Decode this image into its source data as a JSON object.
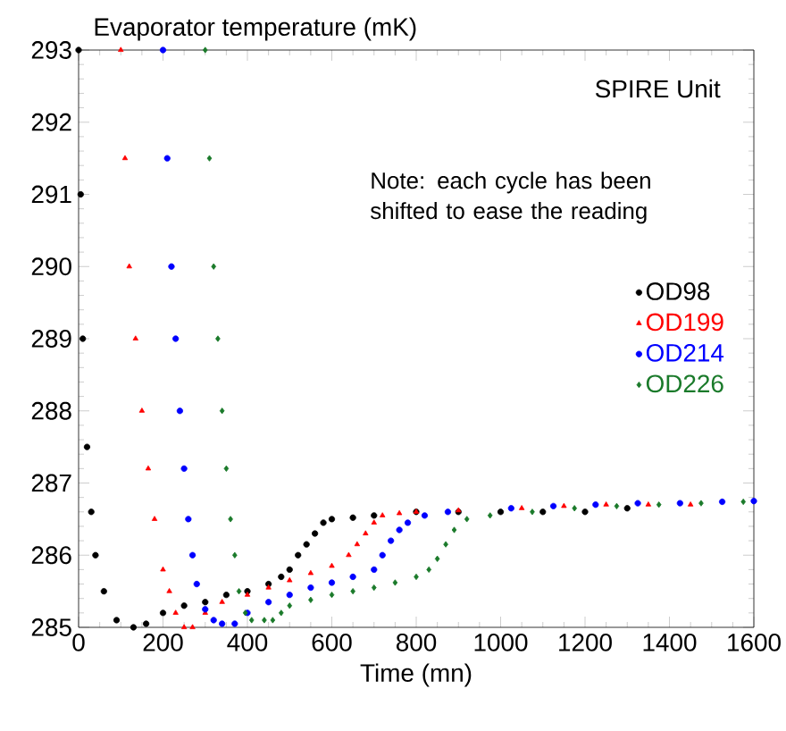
{
  "chart_data": {
    "type": "scatter",
    "ylabel": "Evaporator temperature (mK)",
    "xlabel": "Time (mn)",
    "xlim": [
      0,
      1600
    ],
    "xticks": [
      0,
      200,
      400,
      600,
      800,
      1000,
      1200,
      1400,
      1600
    ],
    "ylim": [
      285,
      293
    ],
    "yticks": [
      285,
      286,
      287,
      288,
      289,
      290,
      291,
      292,
      293
    ],
    "grid": false,
    "legend": "right",
    "annotations": [
      "SPIRE Unit",
      "Note: each cycle has been shifted to ease the reading"
    ],
    "series": [
      {
        "name": "OD98",
        "color": "#000000",
        "marker": "circle",
        "x": [
          0,
          5,
          10,
          20,
          30,
          40,
          60,
          90,
          130,
          160,
          200,
          250,
          300,
          350,
          400,
          450,
          480,
          500,
          520,
          540,
          560,
          580,
          600,
          650,
          700,
          800,
          900,
          1000,
          1100,
          1200,
          1300
        ],
        "values": [
          293,
          291,
          289,
          287.5,
          286.6,
          286,
          285.5,
          285.1,
          285,
          285.05,
          285.2,
          285.3,
          285.35,
          285.45,
          285.5,
          285.6,
          285.7,
          285.8,
          286,
          286.15,
          286.3,
          286.45,
          286.5,
          286.52,
          286.55,
          286.6,
          286.6,
          286.6,
          286.6,
          286.6,
          286.65
        ]
      },
      {
        "name": "OD199",
        "color": "#ff0000",
        "marker": "triangle",
        "x": [
          100,
          110,
          120,
          135,
          150,
          165,
          180,
          200,
          215,
          230,
          250,
          270,
          300,
          340,
          400,
          450,
          500,
          550,
          600,
          640,
          660,
          680,
          700,
          720,
          760,
          800,
          900,
          1050,
          1150,
          1250,
          1350,
          1450
        ],
        "values": [
          293,
          291.5,
          290,
          289,
          288,
          287.2,
          286.5,
          285.8,
          285.5,
          285.2,
          285,
          285,
          285.2,
          285.35,
          285.45,
          285.55,
          285.65,
          285.75,
          285.85,
          286,
          286.15,
          286.3,
          286.45,
          286.55,
          286.58,
          286.6,
          286.62,
          286.65,
          286.68,
          286.7,
          286.7,
          286.7
        ]
      },
      {
        "name": "OD214",
        "color": "#0000ff",
        "marker": "circle",
        "x": [
          200,
          210,
          220,
          230,
          240,
          250,
          260,
          270,
          280,
          300,
          320,
          340,
          370,
          400,
          450,
          500,
          550,
          600,
          650,
          700,
          720,
          740,
          760,
          780,
          820,
          875,
          1025,
          1125,
          1225,
          1325,
          1425,
          1525,
          1600
        ],
        "values": [
          293,
          291.5,
          290,
          289,
          288,
          287.2,
          286.5,
          286,
          285.6,
          285.25,
          285.1,
          285.05,
          285.05,
          285.2,
          285.35,
          285.45,
          285.55,
          285.62,
          285.7,
          285.8,
          286,
          286.2,
          286.35,
          286.45,
          286.55,
          286.6,
          286.65,
          286.68,
          286.7,
          286.72,
          286.72,
          286.74,
          286.75
        ]
      },
      {
        "name": "OD226",
        "color": "#1a7a2a",
        "marker": "diamond",
        "x": [
          300,
          310,
          320,
          330,
          340,
          350,
          360,
          370,
          380,
          395,
          410,
          440,
          460,
          480,
          500,
          550,
          600,
          650,
          700,
          750,
          800,
          830,
          850,
          870,
          890,
          920,
          975,
          1075,
          1175,
          1275,
          1375,
          1475,
          1575
        ],
        "values": [
          293,
          291.5,
          290,
          289,
          288,
          287.2,
          286.5,
          286,
          285.5,
          285.2,
          285.1,
          285.1,
          285.1,
          285.2,
          285.3,
          285.38,
          285.45,
          285.5,
          285.55,
          285.62,
          285.7,
          285.8,
          285.95,
          286.15,
          286.35,
          286.5,
          286.55,
          286.6,
          286.65,
          286.68,
          286.7,
          286.72,
          286.74
        ]
      }
    ]
  }
}
